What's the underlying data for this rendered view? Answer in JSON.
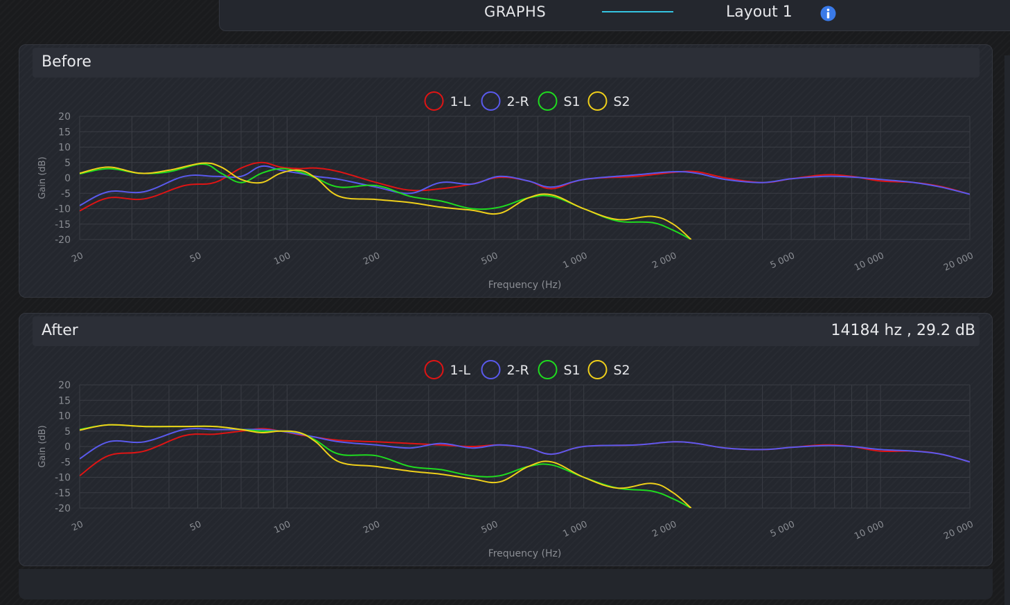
{
  "header": {
    "title": "GRAPHS",
    "layout_label": "Layout 1",
    "accent": "#35c6e3",
    "info_icon": "info-icon"
  },
  "panels": [
    {
      "title": "Before",
      "readout": ""
    },
    {
      "title": "After",
      "readout": "14184 hz , 29.2 dB"
    }
  ],
  "chart_data": [
    {
      "type": "line",
      "title": "Before",
      "xlabel": "Frequency (Hz)",
      "ylabel": "Gain (dB)",
      "xscale": "log",
      "xlim": [
        20,
        20000
      ],
      "ylim": [
        -20,
        20
      ],
      "xticks": [
        20,
        50,
        100,
        200,
        500,
        1000,
        2000,
        5000,
        10000,
        20000
      ],
      "xtick_labels": [
        "20",
        "50",
        "100",
        "200",
        "500",
        "1 000",
        "2 000",
        "5 000",
        "10 000",
        "20 000"
      ],
      "yticks": [
        20,
        15,
        10,
        5,
        0,
        -5,
        -10,
        -15,
        -20
      ],
      "grid": true,
      "legend": "top-center",
      "series": [
        {
          "name": "1-L",
          "color": "#e01414",
          "x": [
            20,
            25,
            33,
            45,
            57,
            70,
            82,
            95,
            110,
            125,
            150,
            200,
            260,
            330,
            420,
            520,
            650,
            780,
            1000,
            1500,
            2000,
            2400,
            3000,
            4000,
            5000,
            6500,
            8000,
            10000,
            13000,
            16000,
            20000
          ],
          "y": [
            -10.7,
            -6.5,
            -6.8,
            -2.5,
            -1.5,
            3.2,
            5.0,
            3.5,
            3.0,
            3.2,
            2.0,
            -1.5,
            -4.0,
            -3.5,
            -2.0,
            0.2,
            -1.0,
            -3.5,
            -0.5,
            0.5,
            1.8,
            2.0,
            0.0,
            -1.5,
            -0.3,
            1.0,
            0.5,
            -1.0,
            -1.5,
            -2.8,
            -5.3
          ]
        },
        {
          "name": "2-R",
          "color": "#5a5aee",
          "x": [
            20,
            25,
            33,
            45,
            57,
            70,
            82,
            95,
            110,
            125,
            150,
            200,
            260,
            330,
            420,
            520,
            650,
            780,
            1000,
            1500,
            2000,
            2400,
            3000,
            4000,
            5000,
            6500,
            8000,
            10000,
            13000,
            16000,
            20000
          ],
          "y": [
            -9.0,
            -4.5,
            -4.5,
            0.5,
            0.5,
            0.5,
            3.8,
            2.5,
            1.5,
            0.5,
            -0.5,
            -3.0,
            -5.0,
            -1.5,
            -2.0,
            0.5,
            -1.0,
            -3.0,
            -0.5,
            1.0,
            2.0,
            1.5,
            -0.5,
            -1.5,
            -0.3,
            0.5,
            0.3,
            -0.5,
            -1.5,
            -3.0,
            -5.3
          ]
        },
        {
          "name": "S1",
          "color": "#1fdc1f",
          "x": [
            20,
            25,
            32,
            40,
            52,
            60,
            70,
            82,
            95,
            110,
            125,
            150,
            200,
            260,
            330,
            420,
            520,
            650,
            780,
            1000,
            1300,
            1700,
            2000,
            2300
          ],
          "y": [
            1.3,
            3.0,
            1.5,
            2.0,
            4.5,
            1.5,
            -1.5,
            1.5,
            3.0,
            2.0,
            0.0,
            -3.0,
            -2.5,
            -6.0,
            -7.5,
            -10.0,
            -9.5,
            -6.5,
            -6.0,
            -10.0,
            -14.0,
            -14.5,
            -17.0,
            -20.0
          ]
        },
        {
          "name": "S2",
          "color": "#f0d01a",
          "x": [
            20,
            25,
            32,
            40,
            52,
            60,
            70,
            82,
            95,
            110,
            125,
            150,
            200,
            260,
            330,
            420,
            520,
            650,
            780,
            1000,
            1300,
            1700,
            2000,
            2300
          ],
          "y": [
            1.5,
            3.5,
            1.5,
            2.5,
            4.8,
            3.5,
            -0.5,
            -1.5,
            1.5,
            2.5,
            0.0,
            -6.0,
            -7.0,
            -8.0,
            -9.5,
            -10.5,
            -11.5,
            -6.5,
            -5.5,
            -10.0,
            -13.5,
            -12.5,
            -15.0,
            -20.0
          ]
        }
      ]
    },
    {
      "type": "line",
      "title": "After",
      "xlabel": "Frequency (Hz)",
      "ylabel": "Gain (dB)",
      "xscale": "log",
      "xlim": [
        20,
        20000
      ],
      "ylim": [
        -20,
        20
      ],
      "xticks": [
        20,
        50,
        100,
        200,
        500,
        1000,
        2000,
        5000,
        10000,
        20000
      ],
      "xtick_labels": [
        "20",
        "50",
        "100",
        "200",
        "500",
        "1 000",
        "2 000",
        "5 000",
        "10 000",
        "20 000"
      ],
      "yticks": [
        20,
        15,
        10,
        5,
        0,
        -5,
        -10,
        -15,
        -20
      ],
      "grid": true,
      "legend": "top-center",
      "series": [
        {
          "name": "1-L",
          "color": "#e01414",
          "x": [
            20,
            25,
            33,
            45,
            57,
            70,
            82,
            95,
            110,
            125,
            150,
            200,
            260,
            330,
            420,
            520,
            650,
            780,
            1000,
            1500,
            2000,
            2400,
            3000,
            4000,
            5000,
            6500,
            8000,
            10000,
            13000,
            16000,
            20000
          ],
          "y": [
            -9.5,
            -3.0,
            -1.5,
            3.5,
            4.0,
            5.0,
            5.8,
            5.0,
            3.8,
            3.0,
            2.0,
            1.5,
            1.0,
            0.5,
            0.0,
            0.5,
            -0.5,
            -2.5,
            0.0,
            0.5,
            1.5,
            1.0,
            -0.5,
            -1.0,
            -0.3,
            0.5,
            0.0,
            -1.5,
            -1.5,
            -2.5,
            -5.0
          ]
        },
        {
          "name": "2-R",
          "color": "#5a5aee",
          "x": [
            20,
            25,
            33,
            45,
            57,
            70,
            82,
            95,
            110,
            125,
            150,
            200,
            260,
            330,
            420,
            520,
            650,
            780,
            1000,
            1500,
            2000,
            2400,
            3000,
            4000,
            5000,
            6500,
            8000,
            10000,
            13000,
            16000,
            20000
          ],
          "y": [
            -4.0,
            1.5,
            1.5,
            5.5,
            5.5,
            5.5,
            5.5,
            5.0,
            4.0,
            3.0,
            1.5,
            0.5,
            -0.5,
            1.0,
            -0.5,
            0.5,
            -0.5,
            -2.5,
            0.0,
            0.5,
            1.5,
            1.0,
            -0.5,
            -1.0,
            -0.3,
            0.3,
            0.0,
            -1.0,
            -1.5,
            -2.5,
            -5.0
          ]
        },
        {
          "name": "S1",
          "color": "#1fdc1f",
          "x": [
            20,
            25,
            33,
            45,
            57,
            70,
            82,
            95,
            110,
            125,
            150,
            200,
            260,
            330,
            420,
            520,
            650,
            780,
            1000,
            1300,
            1700,
            2000,
            2300
          ],
          "y": [
            5.5,
            7.0,
            6.5,
            6.5,
            6.5,
            5.5,
            5.0,
            5.0,
            4.5,
            2.0,
            -2.5,
            -3.0,
            -6.5,
            -7.5,
            -9.5,
            -9.5,
            -6.5,
            -6.0,
            -10.0,
            -13.5,
            -14.5,
            -17.0,
            -20.0
          ]
        },
        {
          "name": "S2",
          "color": "#f0d01a",
          "x": [
            20,
            25,
            33,
            45,
            57,
            70,
            82,
            95,
            110,
            125,
            150,
            200,
            260,
            330,
            420,
            520,
            650,
            780,
            1000,
            1300,
            1700,
            2000,
            2300
          ],
          "y": [
            5.3,
            7.0,
            6.5,
            6.5,
            6.5,
            5.5,
            4.5,
            5.0,
            4.5,
            1.5,
            -5.0,
            -6.5,
            -8.0,
            -9.0,
            -10.5,
            -11.5,
            -6.5,
            -5.0,
            -10.0,
            -13.5,
            -12.0,
            -15.0,
            -20.0
          ]
        }
      ]
    }
  ]
}
